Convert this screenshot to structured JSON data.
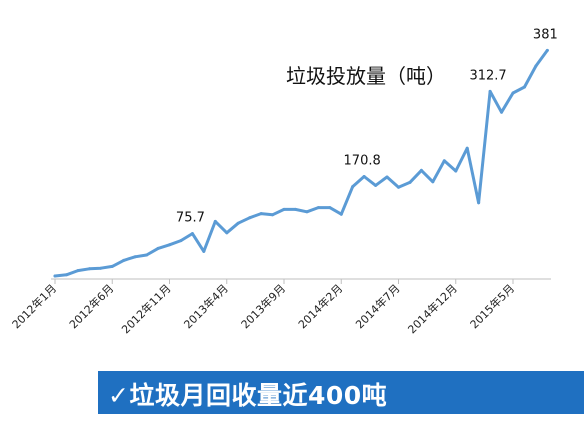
{
  "chart_data": {
    "type": "line",
    "title": "垃圾投放量（吨）",
    "x_tick_labels": [
      "2012年1月",
      "2012年6月",
      "2012年11月",
      "2013年4月",
      "2013年9月",
      "2014年2月",
      "2014年7月",
      "2014年12月",
      "2015年5月"
    ],
    "x": [
      "2012-01",
      "2012-02",
      "2012-03",
      "2012-04",
      "2012-05",
      "2012-06",
      "2012-07",
      "2012-08",
      "2012-09",
      "2012-10",
      "2012-11",
      "2012-12",
      "2013-01",
      "2013-02",
      "2013-03",
      "2013-04",
      "2013-05",
      "2013-06",
      "2013-07",
      "2013-08",
      "2013-09",
      "2013-10",
      "2013-11",
      "2013-12",
      "2014-01",
      "2014-02",
      "2014-03",
      "2014-04",
      "2014-05",
      "2014-06",
      "2014-07",
      "2014-08",
      "2014-09",
      "2014-10",
      "2014-11",
      "2014-12",
      "2015-01",
      "2015-02",
      "2015-03",
      "2015-04",
      "2015-05",
      "2015-06",
      "2015-07",
      "2015-08"
    ],
    "values": [
      5,
      7,
      14,
      17,
      18,
      21,
      31,
      37,
      40,
      51,
      57,
      64,
      75.7,
      46,
      96,
      77,
      93,
      102,
      109,
      107,
      116,
      116,
      112,
      119,
      119,
      108,
      154,
      170.8,
      156,
      170,
      153,
      161,
      181,
      162,
      197,
      180,
      218,
      127,
      312.7,
      278,
      310,
      320,
      355,
      381
    ],
    "data_labels": [
      {
        "index": 12,
        "text": "75.7"
      },
      {
        "index": 27,
        "text": "170.8"
      },
      {
        "index": 38,
        "text": "312.7"
      },
      {
        "index": 43,
        "text": "381"
      }
    ],
    "ylim": [
      0,
      400
    ],
    "grid": false,
    "line_color": "#5b9bd5",
    "axis_color": "#bfbfbf"
  },
  "banner": {
    "text": "✓垃圾月回收量近400吨",
    "color": "#1f70c1"
  }
}
